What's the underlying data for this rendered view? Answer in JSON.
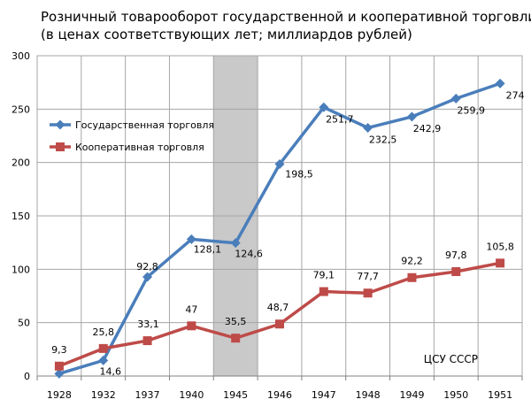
{
  "chart_data": {
    "type": "line",
    "title": "Розничный товарооборот государственной и кооперативной торговли",
    "subtitle": "(в ценах соответствующих лет; миллиардов рублей)",
    "categories": [
      "1928",
      "1932",
      "1937",
      "1940",
      "1945",
      "1946",
      "1947",
      "1948",
      "1949",
      "1950",
      "1951"
    ],
    "series": [
      {
        "name": "Государственная торговля",
        "color": "#4a7ebb",
        "marker": "diamond",
        "values": [
          2.2,
          14.6,
          92.8,
          128.1,
          124.6,
          198.5,
          251.7,
          232.5,
          242.9,
          259.9,
          274
        ],
        "labels": [
          "",
          "14,6",
          "92,8",
          "128,1",
          "124,6",
          "198,5",
          "251,7",
          "232,5",
          "242,9",
          "259,9",
          "274"
        ]
      },
      {
        "name": "Кооперативная торговля",
        "color": "#be4b48",
        "marker": "square",
        "values": [
          9.3,
          25.8,
          33.1,
          47,
          35.5,
          48.7,
          79.1,
          77.7,
          92.2,
          97.8,
          105.8
        ],
        "labels": [
          "9,3",
          "25,8",
          "33,1",
          "47",
          "35,5",
          "48,7",
          "79,1",
          "77,7",
          "92,2",
          "97,8",
          "105,8"
        ]
      }
    ],
    "ylim": [
      0,
      300
    ],
    "yticks": [
      0,
      50,
      100,
      150,
      200,
      250,
      300
    ],
    "grid": true,
    "legend": "top-left",
    "highlight_category": "1945",
    "annotation": "ЦСУ СССР"
  }
}
